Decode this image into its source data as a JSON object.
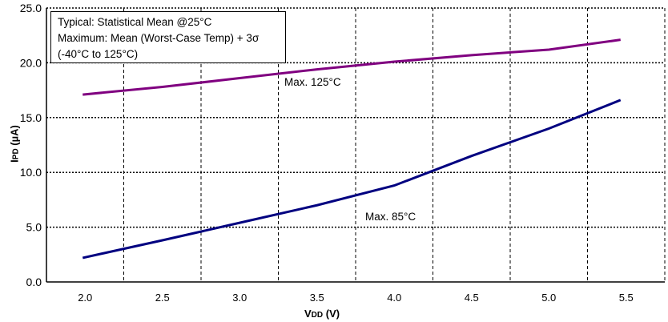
{
  "chart_data": {
    "type": "line",
    "title": "",
    "xlabel_main": "V",
    "xlabel_sub": "DD",
    "xlabel_unit": " (V)",
    "ylabel_main": "I",
    "ylabel_sub": "PD",
    "ylabel_unit": " (µA)",
    "categories": [
      "2.0",
      "2.5",
      "3.0",
      "3.5",
      "4.0",
      "4.5",
      "5.0",
      "5.5"
    ],
    "y_ticks": [
      "0.0",
      "5.0",
      "10.0",
      "15.0",
      "20.0",
      "25.0"
    ],
    "ylim": [
      0,
      25
    ],
    "grid": true,
    "series": [
      {
        "name": "Max. 125°C",
        "color": "#800080",
        "values": [
          17.1,
          17.8,
          18.6,
          19.4,
          20.1,
          20.7,
          21.2,
          22.1
        ]
      },
      {
        "name": "Max. 85°C",
        "color": "#000080",
        "values": [
          2.2,
          3.8,
          5.4,
          7.0,
          8.8,
          11.5,
          14.0,
          16.6
        ]
      }
    ],
    "legend": {
      "placement": "top-left",
      "lines": [
        "Typical: Statistical Mean @25°C",
        "Maximum: Mean (Worst-Case Temp) + 3σ",
        "(-40°C to 125°C)"
      ]
    }
  }
}
